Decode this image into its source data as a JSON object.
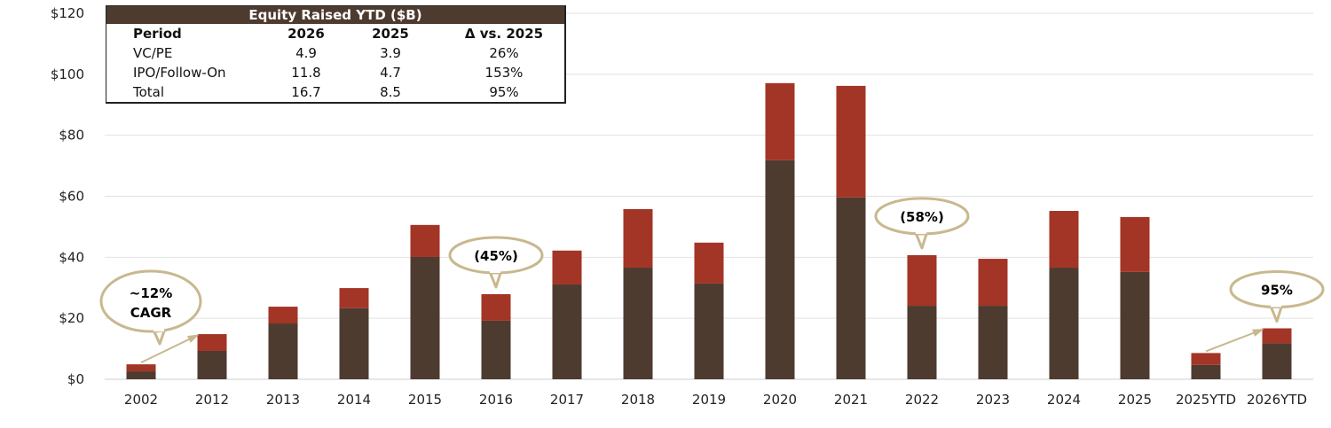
{
  "chart_data": {
    "type": "bar",
    "stacked": true,
    "categories": [
      "2002",
      "2012",
      "2013",
      "2014",
      "2015",
      "2016",
      "2017",
      "2018",
      "2019",
      "2020",
      "2021",
      "2022",
      "2023",
      "2024",
      "2025",
      "2025YTD",
      "2026YTD"
    ],
    "series": [
      {
        "values": [
          2.6,
          9.3,
          18.3,
          23.3,
          40.1,
          19.2,
          31.1,
          36.6,
          31.4,
          71.8,
          59.6,
          24.1,
          24.1,
          36.6,
          35.2,
          4.7,
          11.8
        ],
        "color": "#4e3b30"
      },
      {
        "values": [
          2.3,
          5.5,
          5.5,
          6.6,
          10.5,
          8.7,
          11.1,
          19.2,
          13.4,
          25.3,
          36.6,
          16.6,
          15.4,
          18.6,
          18.0,
          3.9,
          4.9
        ],
        "color": "#a33526"
      }
    ],
    "ylim": [
      0,
      120
    ],
    "yticks": [
      "$0",
      "$20",
      "$40",
      "$60",
      "$80",
      "$100",
      "$120"
    ],
    "grid": true,
    "annotations": [
      {
        "text_lines": [
          "~12%",
          "CAGR"
        ],
        "category": "2002",
        "arrow_to": "2012"
      },
      {
        "text_lines": [
          "(45%)"
        ],
        "category": "2016"
      },
      {
        "text_lines": [
          "(58%)"
        ],
        "category": "2022"
      },
      {
        "text_lines": [
          "95%"
        ],
        "category": "2026YTD",
        "arrow_from": "2025YTD"
      }
    ],
    "callout_color": "#c9b88f"
  },
  "table": {
    "title": "Equity Raised YTD  ($B)",
    "headers": [
      "Period",
      "2026",
      "2025",
      "Δ vs. 2025"
    ],
    "rows": [
      [
        "VC/PE",
        "4.9",
        "3.9",
        "26%"
      ],
      [
        "IPO/Follow-On",
        "11.8",
        "4.7",
        "153%"
      ],
      [
        "Total",
        "16.7",
        "8.5",
        "95%"
      ]
    ]
  }
}
